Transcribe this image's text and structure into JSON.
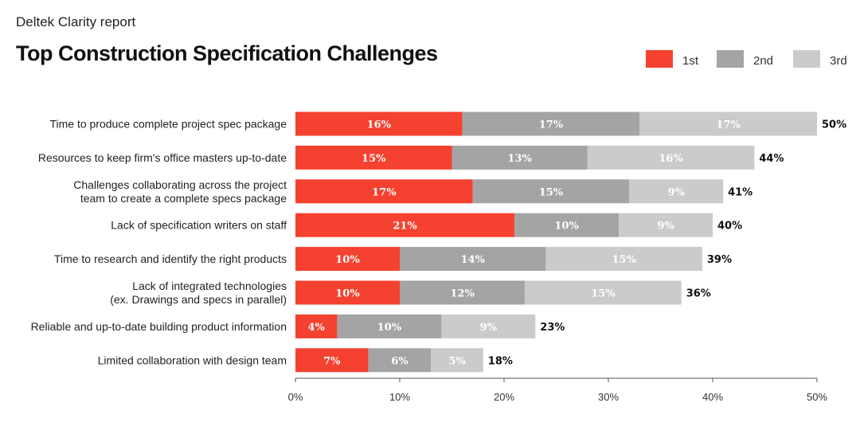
{
  "header": {
    "subtitle": "Deltek Clarity report",
    "title": "Top Construction Specification Challenges"
  },
  "colors": {
    "first": "#f5412f",
    "second": "#a4a4a4",
    "third": "#cbcbcb"
  },
  "chart_data": {
    "type": "bar",
    "orientation": "horizontal",
    "stacked": true,
    "categories": [
      [
        "Time to produce complete project spec package"
      ],
      [
        "Resources to keep firm's office masters up-to-date"
      ],
      [
        "Challenges collaborating across the project",
        "team to create a complete specs package"
      ],
      [
        "Lack of specification writers on staff"
      ],
      [
        "Time to research and identify the right products"
      ],
      [
        "Lack of integrated technologies",
        "(ex. Drawings and specs in parallel)"
      ],
      [
        "Reliable and up-to-date building product information"
      ],
      [
        "Limited collaboration with design team"
      ]
    ],
    "series": [
      {
        "name": "1st",
        "values": [
          16,
          15,
          17,
          21,
          10,
          10,
          4,
          7
        ]
      },
      {
        "name": "2nd",
        "values": [
          17,
          13,
          15,
          10,
          14,
          12,
          10,
          6
        ]
      },
      {
        "name": "3rd",
        "values": [
          17,
          16,
          9,
          9,
          15,
          15,
          9,
          5
        ]
      }
    ],
    "totals": [
      50,
      44,
      41,
      40,
      39,
      36,
      23,
      18
    ],
    "xlim": [
      0,
      50
    ],
    "xticks": [
      0,
      10,
      20,
      30,
      40,
      50
    ],
    "tick_suffix": "%",
    "legend": "top-right",
    "grid": false
  }
}
